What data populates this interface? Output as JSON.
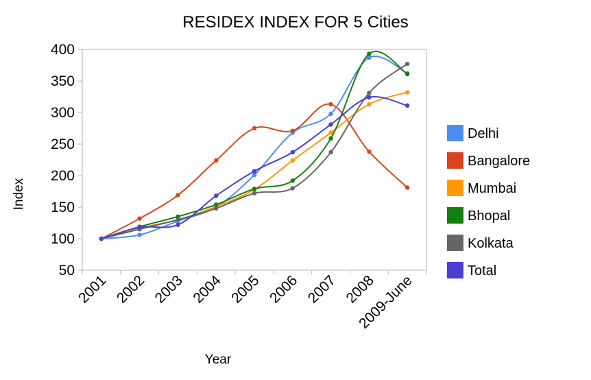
{
  "chart_data": {
    "type": "line",
    "title": "RESIDEX INDEX FOR 5 Cities",
    "xlabel": "Year",
    "ylabel": "Index",
    "ylim": [
      50,
      400
    ],
    "yticks": [
      50,
      100,
      150,
      200,
      250,
      300,
      350,
      400
    ],
    "categories": [
      "2001",
      "2002",
      "2003",
      "2004",
      "2005",
      "2006",
      "2007",
      "2008",
      "2009-June"
    ],
    "grid": false,
    "smooth": true,
    "legend_position": "right",
    "series": [
      {
        "name": "Delhi",
        "color": "#4a8ff0",
        "values": [
          100,
          106,
          128,
          150,
          201,
          268,
          298,
          387,
          362
        ]
      },
      {
        "name": "Bangalore",
        "color": "#d9441c",
        "values": [
          100,
          132,
          169,
          224,
          275,
          271,
          313,
          238,
          181
        ]
      },
      {
        "name": "Mumbai",
        "color": "#ff9900",
        "values": [
          100,
          117,
          130,
          151,
          178,
          224,
          268,
          313,
          332
        ]
      },
      {
        "name": "Bhopal",
        "color": "#13800e",
        "values": [
          100,
          119,
          135,
          154,
          179,
          192,
          259,
          393,
          361
        ]
      },
      {
        "name": "Kolkata",
        "color": "#666666",
        "values": [
          100,
          115,
          130,
          148,
          172,
          180,
          237,
          331,
          377
        ]
      },
      {
        "name": "Total",
        "color": "#4a3fd0",
        "values": [
          100,
          118,
          122,
          168,
          207,
          237,
          281,
          324,
          311
        ]
      }
    ]
  }
}
